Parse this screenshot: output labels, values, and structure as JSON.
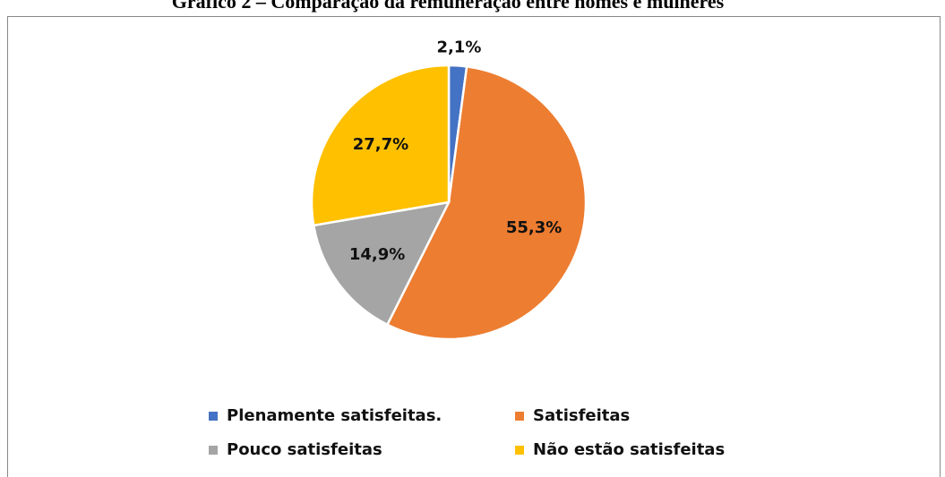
{
  "chart_data": {
    "type": "pie",
    "title": "Gráfico 2 – Comparação da remuneração entre homes e mulheres",
    "categories": [
      "Plenamente satisfeitas.",
      "Satisfeitas",
      "Pouco satisfeitas",
      "Não estão satisfeitas"
    ],
    "values": [
      2.1,
      55.3,
      14.9,
      27.7
    ],
    "value_labels": [
      "2,1%",
      "55,3%",
      "14,9%",
      "27,7%"
    ],
    "colors": [
      "#4472c4",
      "#ed7d31",
      "#a5a5a5",
      "#ffc000"
    ],
    "legend": "bottom"
  }
}
